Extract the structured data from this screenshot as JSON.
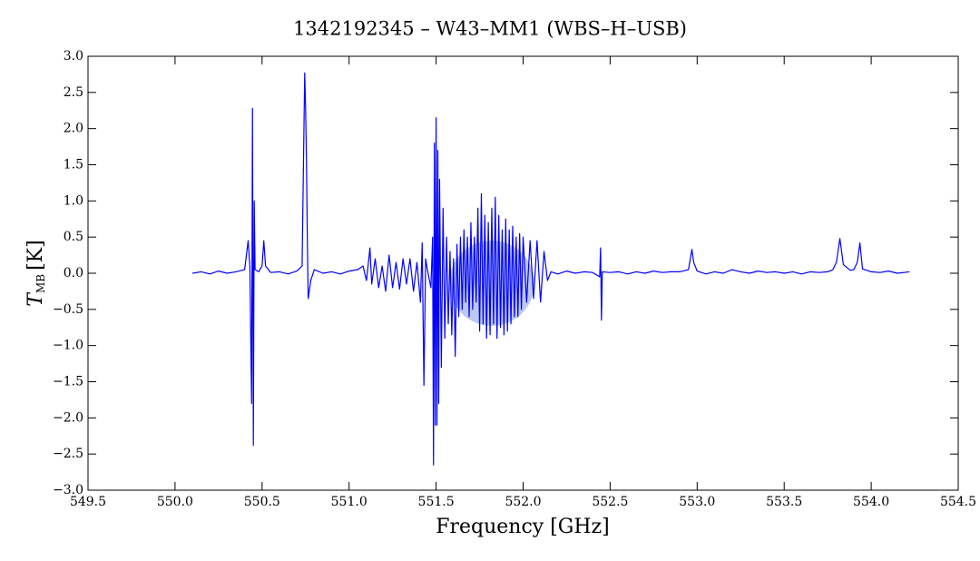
{
  "chart_data": {
    "type": "line",
    "title": "1342192345 – W43–MM1 (WBS–H–USB)",
    "xlabel": "Frequency [GHz]",
    "ylabel": {
      "symbol": "T",
      "subscript": "MB",
      "unit": "[K]"
    },
    "color": "#0000ff",
    "xlim": [
      549.5,
      554.5
    ],
    "ylim": [
      -3,
      3
    ],
    "xticks": [
      549.5,
      {
        "value": 550,
        "label": "550.0"
      },
      550.5,
      {
        "value": 551,
        "label": "551.0"
      },
      551.5,
      {
        "value": 552,
        "label": "552.0"
      },
      552.5,
      {
        "value": 553,
        "label": "553.0"
      },
      553.5,
      {
        "value": 554,
        "label": "554.0"
      },
      554.5
    ],
    "yticks": [
      {
        "value": -3,
        "label": "−3.0"
      },
      {
        "value": -2.5,
        "label": "−2.5"
      },
      {
        "value": -2,
        "label": "−2.0"
      },
      {
        "value": -1.5,
        "label": "−1.5"
      },
      {
        "value": -1,
        "label": "−1.0"
      },
      {
        "value": -0.5,
        "label": "−0.5"
      },
      {
        "value": 0,
        "label": "0.0"
      },
      0.5,
      {
        "value": 1,
        "label": "1.0"
      },
      1.5,
      {
        "value": 2,
        "label": "2.0"
      },
      2.5,
      {
        "value": 3,
        "label": "3.0"
      }
    ],
    "x": [
      550.1,
      550.15,
      550.2,
      550.25,
      550.3,
      550.35,
      550.4,
      550.42,
      550.43,
      550.44,
      550.445,
      550.45,
      550.455,
      550.46,
      550.48,
      550.5,
      550.51,
      550.52,
      550.55,
      550.6,
      550.65,
      550.7,
      550.73,
      550.745,
      550.75,
      550.755,
      550.76,
      550.765,
      550.78,
      550.8,
      550.85,
      550.9,
      550.95,
      551.0,
      551.05,
      551.08,
      551.1,
      551.12,
      551.13,
      551.15,
      551.17,
      551.19,
      551.21,
      551.23,
      551.25,
      551.27,
      551.29,
      551.31,
      551.33,
      551.35,
      551.37,
      551.39,
      551.41,
      551.42,
      551.43,
      551.44,
      551.45,
      551.47,
      551.48,
      551.485,
      551.49,
      551.495,
      551.5,
      551.505,
      551.51,
      551.515,
      551.52,
      551.53,
      551.54,
      551.55,
      551.56,
      551.57,
      551.58,
      551.59,
      551.6,
      551.61,
      551.62,
      551.63,
      551.64,
      551.65,
      551.66,
      551.67,
      551.68,
      551.69,
      551.7,
      551.71,
      551.72,
      551.73,
      551.74,
      551.75,
      551.76,
      551.77,
      551.78,
      551.79,
      551.8,
      551.81,
      551.82,
      551.83,
      551.84,
      551.85,
      551.86,
      551.87,
      551.88,
      551.89,
      551.9,
      551.91,
      551.92,
      551.93,
      551.94,
      551.95,
      551.96,
      551.97,
      551.98,
      551.99,
      552.0,
      552.02,
      552.04,
      552.06,
      552.08,
      552.1,
      552.12,
      552.14,
      552.16,
      552.2,
      552.25,
      552.3,
      552.35,
      552.4,
      552.44,
      552.445,
      552.45,
      552.455,
      552.5,
      552.55,
      552.6,
      552.65,
      552.7,
      552.75,
      552.8,
      552.85,
      552.9,
      552.95,
      552.97,
      552.98,
      553.0,
      553.05,
      553.1,
      553.15,
      553.2,
      553.25,
      553.3,
      553.35,
      553.4,
      553.45,
      553.5,
      553.55,
      553.6,
      553.65,
      553.7,
      553.75,
      553.78,
      553.8,
      553.82,
      553.84,
      553.88,
      553.9,
      553.92,
      553.935,
      553.95,
      554.0,
      554.05,
      554.1,
      554.15,
      554.22
    ],
    "values": [
      0.0,
      0.02,
      -0.01,
      0.03,
      0.0,
      0.02,
      0.05,
      0.45,
      0.1,
      -1.8,
      2.28,
      -2.38,
      1.0,
      0.05,
      0.02,
      0.1,
      0.45,
      0.1,
      0.01,
      0.02,
      -0.01,
      0.03,
      0.1,
      2.77,
      2.3,
      1.6,
      0.5,
      -0.35,
      -0.1,
      0.05,
      0.0,
      0.02,
      -0.01,
      0.03,
      0.05,
      0.1,
      -0.1,
      0.35,
      -0.15,
      0.2,
      -0.2,
      0.1,
      -0.25,
      0.25,
      -0.2,
      0.15,
      -0.22,
      0.2,
      -0.15,
      0.2,
      -0.25,
      0.15,
      -0.4,
      0.42,
      -1.55,
      0.2,
      0.05,
      -0.2,
      0.5,
      -2.65,
      1.8,
      -2.1,
      2.15,
      -2.1,
      1.7,
      -1.8,
      1.3,
      -1.3,
      0.9,
      -0.9,
      0.5,
      -0.7,
      0.3,
      -0.85,
      0.2,
      -1.15,
      0.4,
      -0.6,
      0.5,
      -0.5,
      0.6,
      -0.4,
      0.5,
      -0.6,
      0.7,
      -0.5,
      0.5,
      -0.4,
      0.9,
      -0.8,
      1.1,
      -0.7,
      0.8,
      -0.9,
      0.7,
      -0.85,
      0.9,
      -0.7,
      1.05,
      -0.9,
      0.8,
      -0.75,
      0.6,
      -0.85,
      0.75,
      -0.8,
      0.6,
      -0.7,
      0.65,
      -0.6,
      0.5,
      -0.6,
      0.55,
      -0.5,
      0.5,
      -0.4,
      0.45,
      -0.35,
      0.45,
      -0.4,
      0.3,
      -0.1,
      0.02,
      -0.01,
      0.03,
      0.0,
      0.02,
      0.01,
      -0.05,
      0.35,
      -0.65,
      0.02,
      0.01,
      0.02,
      -0.01,
      0.02,
      0.0,
      0.03,
      0.01,
      0.02,
      0.02,
      0.05,
      0.33,
      0.15,
      0.03,
      -0.01,
      0.02,
      0.0,
      0.05,
      0.02,
      0.0,
      0.03,
      0.01,
      0.02,
      0.0,
      0.02,
      -0.01,
      0.02,
      0.01,
      0.02,
      0.05,
      0.15,
      0.48,
      0.12,
      0.04,
      0.05,
      0.15,
      0.42,
      0.06,
      0.02,
      0.01,
      0.03,
      0.0,
      0.02
    ]
  }
}
